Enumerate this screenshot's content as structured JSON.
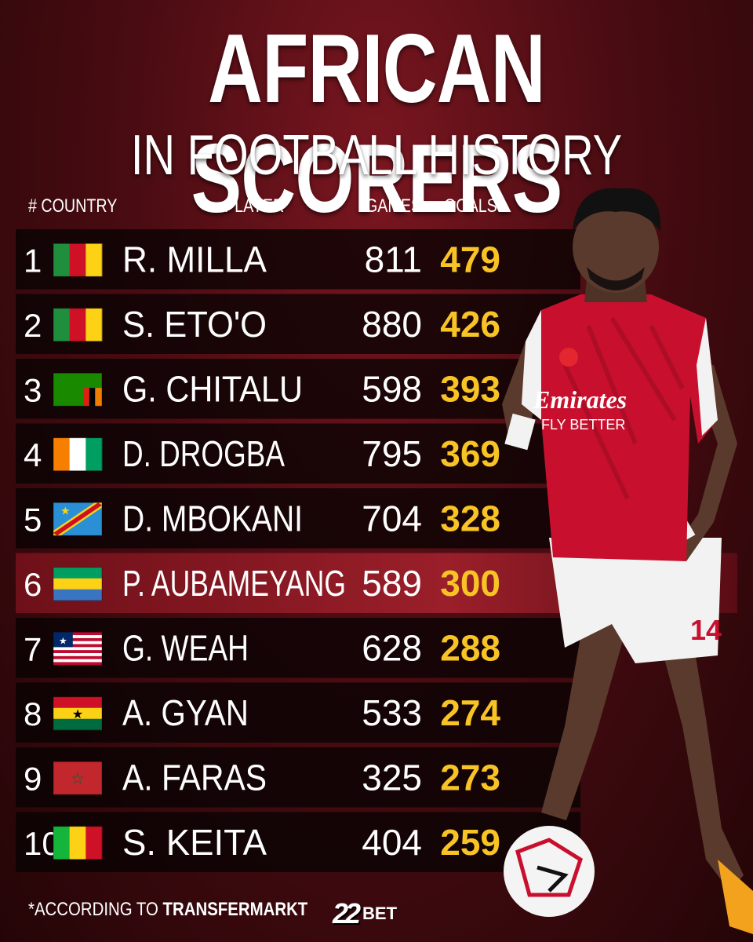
{
  "header": {
    "title": "AFRICAN SCORERS",
    "subtitle": "IN FOOTBALL HISTORY"
  },
  "columns": {
    "rank": "# COUNTRY",
    "player": "PLAYER",
    "games": "GAMES",
    "goals": "GOALS"
  },
  "colors": {
    "goals": "#f7c325",
    "background": "#4a0c12",
    "highlight": "#8c1a24"
  },
  "chart_data": {
    "type": "table",
    "columns": [
      "#",
      "COUNTRY",
      "PLAYER",
      "GAMES",
      "GOALS"
    ],
    "rows": [
      {
        "rank": "1",
        "country": "flag-cameroon",
        "player": "R. MILLA",
        "games": 811,
        "goals": 479
      },
      {
        "rank": "2",
        "country": "flag-cameroon",
        "player": "S. ETO'O",
        "games": 880,
        "goals": 426
      },
      {
        "rank": "3",
        "country": "flag-zambia",
        "player": "G. CHITALU",
        "games": 598,
        "goals": 393
      },
      {
        "rank": "4",
        "country": "flag-ivory-coast",
        "player": "D. DROGBA",
        "games": 795,
        "goals": 369
      },
      {
        "rank": "5",
        "country": "flag-dr-congo",
        "player": "D. MBOKANI",
        "games": 704,
        "goals": 328
      },
      {
        "rank": "6",
        "country": "flag-gabon",
        "player": "P. AUBAMEYANG",
        "games": 589,
        "goals": 300,
        "highlight": true
      },
      {
        "rank": "7",
        "country": "flag-liberia",
        "player": "G. WEAH",
        "games": 628,
        "goals": 288
      },
      {
        "rank": "8",
        "country": "flag-ghana",
        "player": "A. GYAN",
        "games": 533,
        "goals": 274
      },
      {
        "rank": "9",
        "country": "flag-morocco",
        "player": "A. FARAS",
        "games": 325,
        "goals": 273
      },
      {
        "rank": "10",
        "country": "flag-mali",
        "player": "S. KEITA",
        "games": 404,
        "goals": 259
      }
    ]
  },
  "footer": {
    "note_prefix": "*ACCORDING TO",
    "note_source": "TRANSFERMARKT",
    "brand_mark": "22",
    "brand_text": "BET"
  }
}
